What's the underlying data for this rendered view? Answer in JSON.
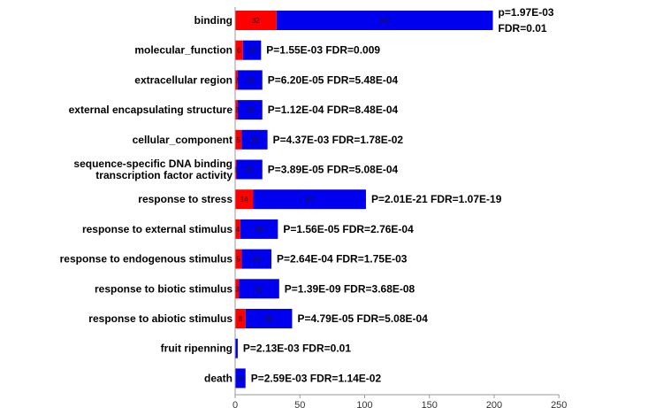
{
  "chart_data": {
    "type": "bar",
    "orientation": "horizontal",
    "stacked": true,
    "xlim": [
      0,
      250
    ],
    "x_ticks": [
      "0",
      "50",
      "100",
      "150",
      "200",
      "250"
    ],
    "grid": false,
    "legend": "none",
    "colors": {
      "first": "#ff0000",
      "second": "#0000ee"
    },
    "categories": [
      {
        "label": [
          "binding"
        ],
        "red": 32,
        "blue": 167,
        "red_label": "32",
        "blue_label": "167",
        "stats": [
          "p=1.97E-03",
          "FDR=0.01"
        ]
      },
      {
        "label": [
          "molecular_function"
        ],
        "red": 6,
        "blue": 14,
        "red_label": "6",
        "blue_label": "14",
        "stats": [
          "P=1.55E-03  FDR=0.009"
        ]
      },
      {
        "label": [
          "extracellular region"
        ],
        "red": 2,
        "blue": 19,
        "red_label": "2",
        "blue_label": "19",
        "stats": [
          "P=6.20E-05  FDR=5.48E-04"
        ]
      },
      {
        "label": [
          "external encapsulating structure"
        ],
        "red": 2,
        "blue": 19,
        "red_label": "2",
        "blue_label": "19",
        "stats": [
          "P=1.12E-04  FDR=8.48E-04"
        ]
      },
      {
        "label": [
          "cellular_component"
        ],
        "red": 5,
        "blue": 20,
        "red_label": "5",
        "blue_label": "20",
        "stats": [
          "P=4.37E-03  FDR=1.78E-02"
        ]
      },
      {
        "label": [
          "sequence-specific DNA binding",
          "transcription factor activity"
        ],
        "red": 1,
        "blue": 20,
        "red_label": "1",
        "blue_label": "20",
        "stats": [
          "P=3.89E-05  FDR=5.08E-04"
        ]
      },
      {
        "label": [
          "response to stress"
        ],
        "red": 14,
        "blue": 87,
        "red_label": "14",
        "blue_label": "87",
        "stats": [
          "P=2.01E-21  FDR=1.07E-19"
        ]
      },
      {
        "label": [
          "response to external stimulus"
        ],
        "red": 4,
        "blue": 29,
        "red_label": "4",
        "blue_label": "29",
        "stats": [
          "P=1.56E-05  FDR=2.76E-04"
        ]
      },
      {
        "label": [
          "response to endogenous stimulus"
        ],
        "red": 5,
        "blue": 23,
        "red_label": "5",
        "blue_label": "23",
        "stats": [
          "P=2.64E-04  FDR=1.75E-03"
        ]
      },
      {
        "label": [
          "response to biotic stimulus"
        ],
        "red": 3,
        "blue": 31,
        "red_label": "3",
        "blue_label": "31",
        "stats": [
          "P=1.39E-09 FDR=3.68E-08"
        ]
      },
      {
        "label": [
          "response to abiotic stimulus"
        ],
        "red": 8,
        "blue": 36,
        "red_label": "8",
        "blue_label": "36",
        "stats": [
          "P=4.79E-05  FDR=5.08E-04"
        ]
      },
      {
        "label": [
          "fruit ripenning"
        ],
        "red": 0,
        "blue": 2,
        "red_label": "",
        "blue_label": "",
        "stats": [
          "P=2.13E-03  FDR=0.01"
        ]
      },
      {
        "label": [
          "death"
        ],
        "red": 0,
        "blue": 8,
        "red_label": "",
        "blue_label": "8",
        "stats": [
          "P=2.59E-03  FDR=1.14E-02"
        ]
      }
    ]
  }
}
